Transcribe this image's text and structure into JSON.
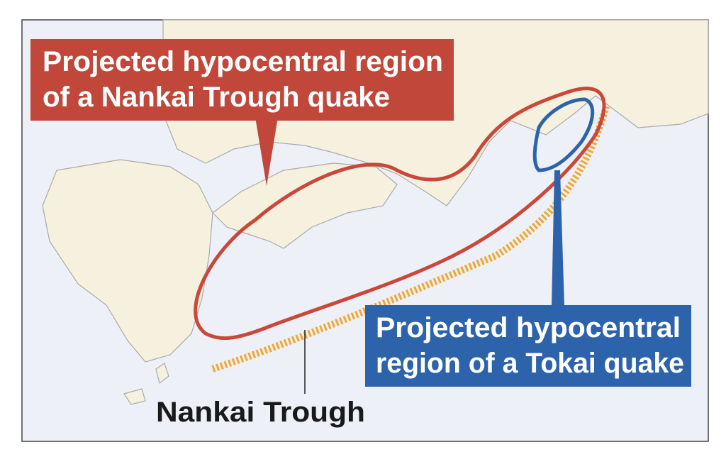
{
  "callouts": [
    {
      "lines": [
        "Projected hypocentral region",
        "of a Nankai Trough quake"
      ]
    },
    {
      "lines": [
        "Projected hypocentral",
        "region of a Tokai quake"
      ]
    }
  ],
  "trough_label": "Nankai Trough"
}
